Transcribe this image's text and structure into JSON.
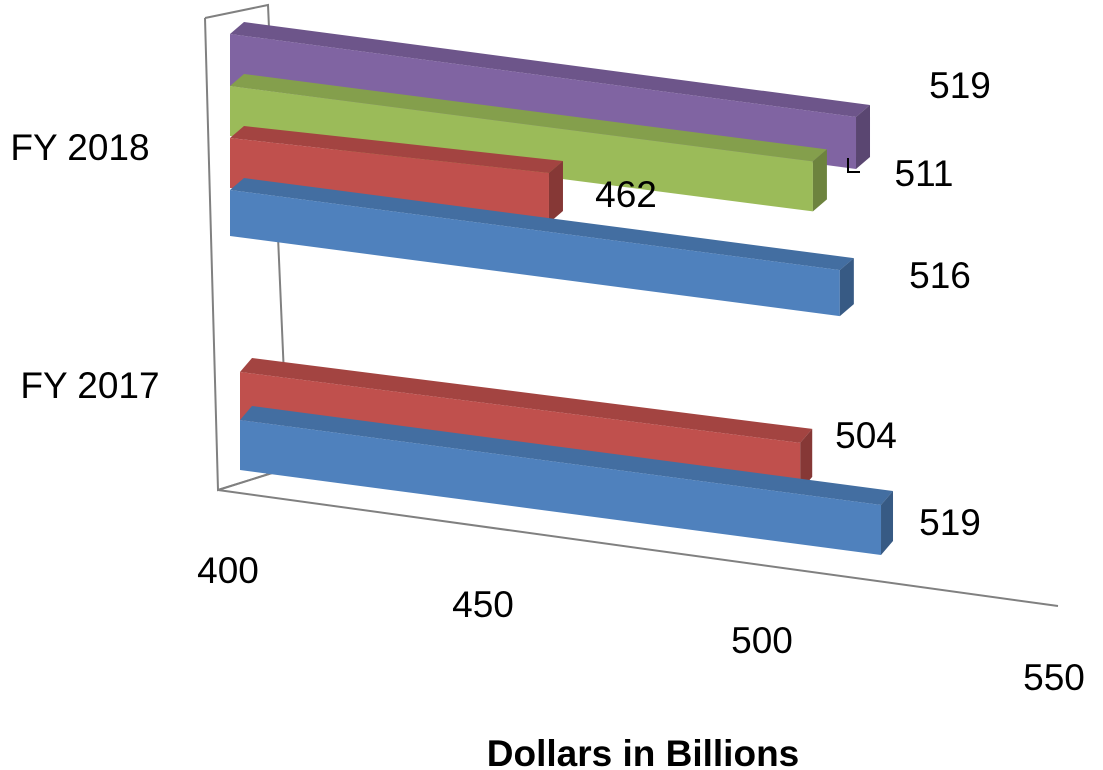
{
  "chart_data": {
    "type": "bar",
    "orientation": "horizontal",
    "style": "3d-perspective",
    "xlabel": "Dollars in Billions",
    "xlim": [
      400,
      550
    ],
    "x_ticks": [
      "400",
      "450",
      "500",
      "550"
    ],
    "categories": [
      "FY 2017",
      "FY 2018"
    ],
    "series": [
      {
        "color": "#4f81bd",
        "values": [
          519,
          516
        ]
      },
      {
        "color": "#c0504d",
        "values": [
          504,
          462
        ]
      },
      {
        "color": "#9bbb59",
        "values": [
          null,
          511
        ]
      },
      {
        "color": "#8064a2",
        "values": [
          null,
          519
        ]
      }
    ],
    "data_labels": {
      "FY 2017": [
        "519",
        "504"
      ],
      "FY 2018": [
        "516",
        "462",
        "511",
        "519"
      ]
    },
    "legend": "none",
    "grid": false
  }
}
